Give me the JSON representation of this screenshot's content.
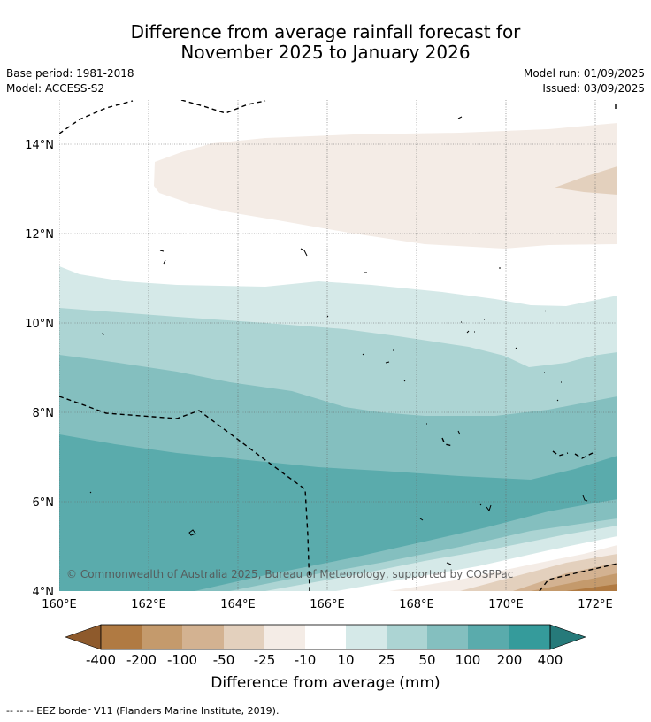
{
  "title": {
    "line1": "Difference from average rainfall forecast for",
    "line2": "November 2025 to January 2026"
  },
  "meta": {
    "base_period": "Base period: 1981-2018",
    "model": "Model: ACCESS-S2",
    "model_run": "Model run: 01/09/2025",
    "issued": "Issued: 03/09/2025"
  },
  "map": {
    "lat_labels": [
      "14°N",
      "12°N",
      "10°N",
      "8°N",
      "6°N",
      "4°N"
    ],
    "lon_labels": [
      "160°E",
      "162°E",
      "164°E",
      "166°E",
      "168°E",
      "170°E",
      "172°E"
    ],
    "copyright": "© Commonwealth of Australia 2025, Bureau of Meteorology, supported by COSPPac",
    "extent": {
      "lon": [
        160,
        172.5
      ],
      "lat": [
        4,
        15
      ]
    }
  },
  "colorbar": {
    "labels": [
      "-400",
      "-200",
      "-100",
      "-50",
      "-25",
      "-10",
      "10",
      "25",
      "50",
      "100",
      "200",
      "400"
    ],
    "colors": {
      "below_400": "#8e5a2c",
      "neg400_200": "#b07a42",
      "neg200_100": "#c49a6c",
      "neg100_50": "#d3b291",
      "neg50_25": "#e3d0bd",
      "neg25_10": "#f4ece6",
      "neg10_10": "#ffffff",
      "pos10_25": "#d5e9e8",
      "pos25_50": "#acd4d3",
      "pos50_100": "#84bfbf",
      "pos100_200": "#5aabac",
      "pos200_400": "#359b9b",
      "above_400": "#267a7a"
    },
    "title": "Difference from average (mm)"
  },
  "footnote": "--  --  -- EEZ border V11 (Flanders Marine Institute, 2019)."
}
